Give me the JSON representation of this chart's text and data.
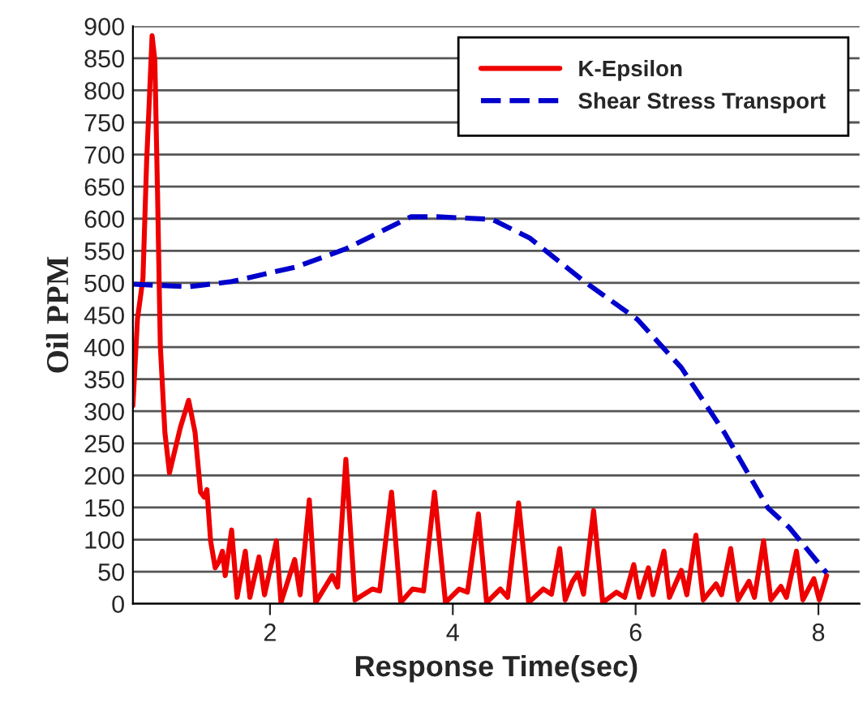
{
  "chart_data": {
    "type": "line",
    "xlabel": "Response Time(sec)",
    "ylabel": "Oil PPM",
    "xlim": [
      0.5,
      8.45
    ],
    "xticks": [
      2,
      4,
      6,
      8
    ],
    "ylim": [
      0,
      900
    ],
    "yticks": [
      0,
      50,
      100,
      150,
      200,
      250,
      300,
      350,
      400,
      450,
      500,
      550,
      600,
      650,
      700,
      750,
      800,
      850,
      900
    ],
    "grid": "y",
    "legend": "top right",
    "marker": "none",
    "series": [
      {
        "name": "K-Epsilon",
        "color": "#ee0000",
        "line_style": "solid",
        "x": [
          0.5,
          0.55,
          0.61,
          0.65,
          0.71,
          0.74,
          0.77,
          0.8,
          0.85,
          0.9,
          1.02,
          1.11,
          1.18,
          1.24,
          1.28,
          1.31,
          1.35,
          1.4,
          1.44,
          1.48,
          1.51,
          1.58,
          1.64,
          1.73,
          1.78,
          1.88,
          1.94,
          2.07,
          2.12,
          2.27,
          2.33,
          2.43,
          2.5,
          2.68,
          2.74,
          2.83,
          2.93,
          3.12,
          3.2,
          3.33,
          3.43,
          3.56,
          3.68,
          3.8,
          3.92,
          4.07,
          4.16,
          4.28,
          4.37,
          4.52,
          4.6,
          4.72,
          4.83,
          4.99,
          5.08,
          5.17,
          5.23,
          5.31,
          5.37,
          5.43,
          5.54,
          5.64,
          5.79,
          5.88,
          5.98,
          6.04,
          6.14,
          6.19,
          6.31,
          6.37,
          6.5,
          6.56,
          6.66,
          6.74,
          6.88,
          6.94,
          7.04,
          7.12,
          7.24,
          7.3,
          7.4,
          7.48,
          7.59,
          7.65,
          7.76,
          7.83,
          7.95,
          8.01,
          8.09
        ],
        "values": [
          309,
          444,
          507,
          688,
          885,
          847,
          637,
          402,
          267,
          204,
          275,
          317,
          267,
          174,
          166,
          178,
          98,
          56,
          65,
          82,
          44,
          115,
          10,
          82,
          10,
          73,
          14,
          98,
          2,
          69,
          14,
          162,
          2,
          44,
          26,
          225,
          6,
          23,
          20,
          174,
          2,
          23,
          20,
          174,
          2,
          23,
          18,
          140,
          2,
          23,
          10,
          157,
          2,
          23,
          15,
          86,
          6,
          35,
          48,
          15,
          145,
          2,
          18,
          10,
          61,
          10,
          56,
          14,
          82,
          10,
          52,
          14,
          107,
          6,
          31,
          14,
          86,
          6,
          35,
          10,
          98,
          6,
          27,
          10,
          82,
          6,
          39,
          6,
          44
        ]
      },
      {
        "name": "Shear Stress Transport",
        "color": "#0000cc",
        "line_style": "dashed",
        "x": [
          0.5,
          1.11,
          1.58,
          2.29,
          2.83,
          3.54,
          3.83,
          4.43,
          4.84,
          5.43,
          6.02,
          6.5,
          6.97,
          7.45,
          7.68,
          8.09
        ],
        "values": [
          498,
          494,
          502,
          525,
          553,
          603,
          603,
          599,
          570,
          503,
          443,
          368,
          267,
          149,
          119,
          48
        ]
      }
    ]
  }
}
